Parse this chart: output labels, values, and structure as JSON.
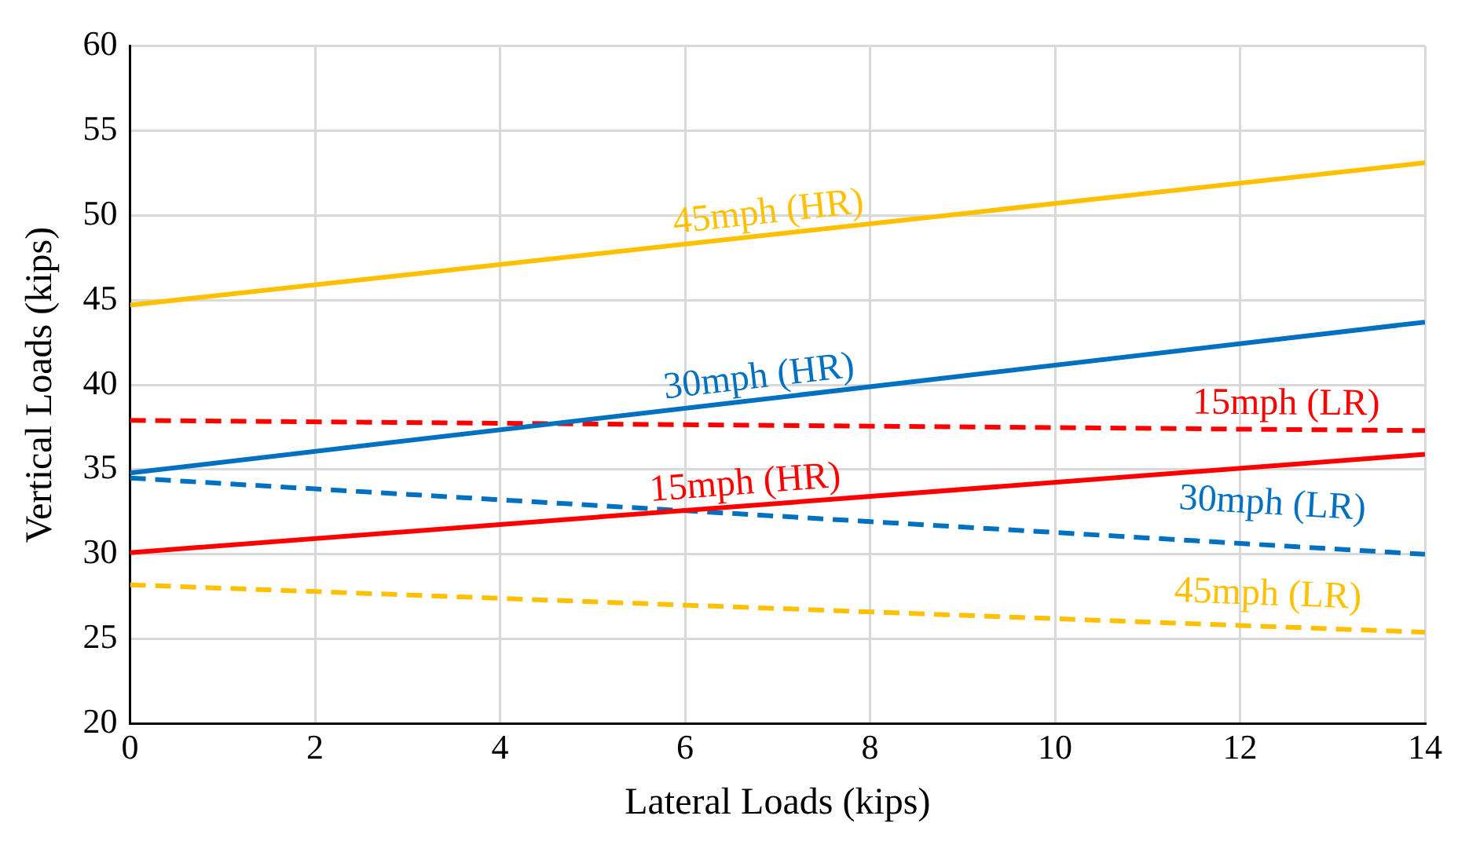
{
  "chart_data": {
    "type": "line",
    "xlabel": "Lateral Loads (kips)",
    "ylabel": "Vertical Loads (kips)",
    "x": [
      0,
      14
    ],
    "series": [
      {
        "name": "45mph (HR)",
        "color": "#ffc000",
        "values": [
          44.7,
          53.1
        ],
        "line_style": "solid"
      },
      {
        "name": "30mph (HR)",
        "color": "#0070c0",
        "values": [
          34.8,
          43.7
        ],
        "line_style": "solid"
      },
      {
        "name": "15mph (LR)",
        "color": "#ff0000",
        "values": [
          37.9,
          37.3
        ],
        "line_style": "dashed"
      },
      {
        "name": "15mph (HR)",
        "color": "#ff0000",
        "values": [
          30.1,
          35.9
        ],
        "line_style": "solid"
      },
      {
        "name": "30mph (LR)",
        "color": "#0070c0",
        "values": [
          34.5,
          30.0
        ],
        "line_style": "dashed"
      },
      {
        "name": "45mph (LR)",
        "color": "#ffc000",
        "values": [
          28.2,
          25.4
        ],
        "line_style": "dashed"
      }
    ],
    "xlim": [
      0,
      14
    ],
    "xticks": [
      0,
      2,
      4,
      6,
      8,
      10,
      12,
      14
    ],
    "ylim": [
      20,
      60
    ],
    "yticks": [
      20,
      25,
      30,
      35,
      40,
      45,
      50,
      55,
      60
    ],
    "grid": true,
    "legend": false,
    "marker": "none"
  }
}
